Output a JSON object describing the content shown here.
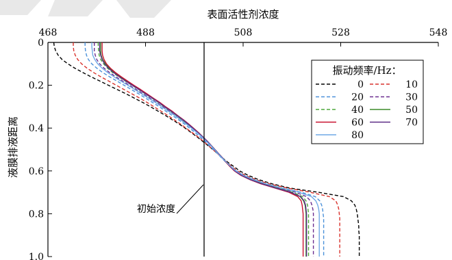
{
  "chart_data": {
    "type": "line",
    "title": "",
    "xlabel": "表面活性剂浓度",
    "ylabel": "液膜排液距离",
    "xlim": [
      468,
      548
    ],
    "ylim": [
      0,
      1.0
    ],
    "y_inverted": true,
    "x_axis_position": "top",
    "xticks": [
      "468",
      "488",
      "508",
      "528",
      "548"
    ],
    "yticks": [
      "0",
      "0.2",
      "0.4",
      "0.6",
      "0.8",
      "1.0"
    ],
    "legend_title": "振动频率/Hz：",
    "legend_position": "top-right",
    "annotation": {
      "label": "初始浓度",
      "x": 500
    },
    "y": [
      0,
      0.02,
      0.04,
      0.06,
      0.08,
      0.1,
      0.12,
      0.14,
      0.16,
      0.18,
      0.2,
      0.22,
      0.24,
      0.26,
      0.28,
      0.3,
      0.32,
      0.34,
      0.36,
      0.38,
      0.4,
      0.42,
      0.44,
      0.46,
      0.48,
      0.5,
      0.52,
      0.54,
      0.56,
      0.58,
      0.6,
      0.62,
      0.64,
      0.66,
      0.68,
      0.7,
      0.72,
      0.74,
      0.76,
      0.78,
      0.8,
      0.82,
      0.84,
      0.86,
      0.88,
      0.9,
      0.92,
      0.94,
      0.96,
      0.98,
      1.0
    ],
    "series": [
      {
        "name": "0",
        "color": "#000000",
        "dash": "5,3",
        "x": [
          469.2,
          469.3,
          469.6,
          470.1,
          470.9,
          472.1,
          473.5,
          475.1,
          476.8,
          478.6,
          480.4,
          482.2,
          484.0,
          485.7,
          487.4,
          489.0,
          490.5,
          492.0,
          493.4,
          494.8,
          496.1,
          497.3,
          498.5,
          499.6,
          500.7,
          501.8,
          502.8,
          503.8,
          504.9,
          506.1,
          507.3,
          509.0,
          511.1,
          513.9,
          517.5,
          523.5,
          528.6,
          530.2,
          530.9,
          531.2,
          531.4,
          531.5,
          531.6,
          531.7,
          531.7,
          531.8,
          531.8,
          531.8,
          531.8,
          531.8,
          531.8
        ]
      },
      {
        "name": "10",
        "color": "#d9312b",
        "dash": "5,3",
        "x": [
          473.2,
          473.2,
          473.3,
          473.6,
          474.1,
          474.9,
          476.0,
          477.3,
          478.8,
          480.4,
          482.0,
          483.6,
          485.2,
          486.8,
          488.3,
          489.7,
          491.1,
          492.5,
          493.8,
          495.1,
          496.3,
          497.5,
          498.7,
          499.8,
          500.8,
          501.8,
          502.8,
          503.7,
          504.7,
          505.7,
          506.8,
          508.4,
          510.5,
          513.3,
          517.0,
          521.8,
          525.7,
          527.0,
          527.4,
          527.6,
          527.7,
          527.8,
          527.8,
          527.8,
          527.8,
          527.8,
          527.8,
          527.8,
          527.8,
          527.8,
          527.8
        ]
      },
      {
        "name": "20",
        "color": "#4a90d9",
        "dash": "5,3",
        "x": [
          475.6,
          475.6,
          475.7,
          475.9,
          476.3,
          477.0,
          478.0,
          479.2,
          480.6,
          482.1,
          483.6,
          485.1,
          486.6,
          488.0,
          489.4,
          490.8,
          492.1,
          493.4,
          494.7,
          495.9,
          497.0,
          498.1,
          499.1,
          500.1,
          501.0,
          501.9,
          502.8,
          503.6,
          504.5,
          505.5,
          506.6,
          508.1,
          510.1,
          512.7,
          516.0,
          520.0,
          522.8,
          523.7,
          524.1,
          524.3,
          524.4,
          524.5,
          524.5,
          524.5,
          524.5,
          524.5,
          524.5,
          524.5,
          524.5,
          524.5,
          524.5
        ]
      },
      {
        "name": "30",
        "color": "#6a2c8f",
        "dash": "5,3",
        "x": [
          477.5,
          477.5,
          477.5,
          477.7,
          478.0,
          478.6,
          479.5,
          480.6,
          481.9,
          483.3,
          484.7,
          486.1,
          487.5,
          488.9,
          490.2,
          491.5,
          492.8,
          494.0,
          495.2,
          496.4,
          497.5,
          498.6,
          499.5,
          500.4,
          501.3,
          502.1,
          502.9,
          503.7,
          504.5,
          505.4,
          506.4,
          507.8,
          509.7,
          512.2,
          515.4,
          518.8,
          521.0,
          521.8,
          522.1,
          522.3,
          522.4,
          522.4,
          522.4,
          522.4,
          522.4,
          522.4,
          522.4,
          522.4,
          522.4,
          522.4,
          522.4
        ]
      },
      {
        "name": "40",
        "color": "#4ea83c",
        "dash": "5,3",
        "x": [
          478.3,
          478.3,
          478.4,
          478.5,
          478.8,
          479.4,
          480.2,
          481.2,
          482.5,
          483.8,
          485.2,
          486.6,
          487.9,
          489.3,
          490.6,
          491.8,
          493.1,
          494.3,
          495.4,
          496.6,
          497.7,
          498.7,
          499.6,
          500.5,
          501.4,
          502.2,
          503.0,
          503.8,
          504.6,
          505.4,
          506.4,
          507.7,
          509.6,
          512.0,
          515.0,
          518.2,
          520.2,
          520.9,
          521.2,
          521.3,
          521.4,
          521.4,
          521.4,
          521.4,
          521.4,
          521.4,
          521.4,
          521.4,
          521.4,
          521.4,
          521.4
        ]
      },
      {
        "name": "50",
        "color": "#3c8c28",
        "dash": "",
        "x": [
          478.8,
          478.8,
          478.8,
          478.9,
          479.2,
          479.8,
          480.6,
          481.6,
          482.8,
          484.1,
          485.5,
          486.8,
          488.2,
          489.5,
          490.8,
          492.0,
          493.3,
          494.5,
          495.6,
          496.7,
          497.8,
          498.8,
          499.7,
          500.6,
          501.4,
          502.2,
          503.0,
          503.8,
          504.6,
          505.4,
          506.3,
          507.6,
          509.5,
          511.8,
          514.8,
          517.8,
          519.7,
          520.4,
          520.7,
          520.8,
          520.9,
          520.9,
          520.9,
          520.9,
          520.9,
          520.9,
          520.9,
          520.9,
          520.9,
          520.9,
          520.9
        ]
      },
      {
        "name": "60",
        "color": "#c8102e",
        "dash": "",
        "x": [
          479.1,
          479.1,
          479.1,
          479.2,
          479.5,
          480.0,
          480.8,
          481.8,
          483.0,
          484.3,
          485.6,
          487.0,
          488.3,
          489.6,
          490.9,
          492.1,
          493.4,
          494.5,
          495.7,
          496.8,
          497.8,
          498.8,
          499.7,
          500.6,
          501.4,
          502.2,
          503.0,
          503.8,
          504.5,
          505.3,
          506.2,
          507.5,
          509.3,
          511.6,
          514.5,
          517.4,
          519.2,
          519.9,
          520.1,
          520.2,
          520.3,
          520.3,
          520.3,
          520.3,
          520.3,
          520.3,
          520.3,
          520.3,
          520.3,
          520.3,
          520.3
        ]
      },
      {
        "name": "70",
        "color": "#5b2a86",
        "dash": "",
        "x": [
          478.6,
          478.6,
          478.6,
          478.8,
          479.1,
          479.6,
          480.4,
          481.4,
          482.6,
          483.9,
          485.3,
          486.7,
          488.0,
          489.4,
          490.7,
          491.9,
          493.2,
          494.4,
          495.6,
          496.7,
          497.7,
          498.7,
          499.7,
          500.6,
          501.4,
          502.2,
          503.0,
          503.8,
          504.6,
          505.4,
          506.3,
          507.6,
          509.4,
          511.8,
          514.7,
          517.8,
          519.8,
          520.5,
          520.8,
          520.9,
          521.0,
          521.0,
          521.0,
          521.0,
          521.0,
          521.0,
          521.0,
          521.0,
          521.0,
          521.0,
          521.0
        ]
      },
      {
        "name": "80",
        "color": "#6fa8e6",
        "dash": "",
        "x": [
          477.0,
          477.0,
          477.1,
          477.2,
          477.6,
          478.2,
          479.1,
          480.2,
          481.5,
          482.9,
          484.4,
          485.8,
          487.2,
          488.6,
          490.0,
          491.3,
          492.6,
          493.9,
          495.1,
          496.3,
          497.4,
          498.5,
          499.5,
          500.4,
          501.3,
          502.1,
          502.9,
          503.7,
          504.6,
          505.5,
          506.5,
          508.0,
          510.0,
          512.6,
          515.8,
          519.5,
          522.0,
          522.9,
          523.3,
          523.5,
          523.6,
          523.6,
          523.6,
          523.6,
          523.6,
          523.6,
          523.6,
          523.6,
          523.6,
          523.6,
          523.6
        ]
      }
    ]
  }
}
